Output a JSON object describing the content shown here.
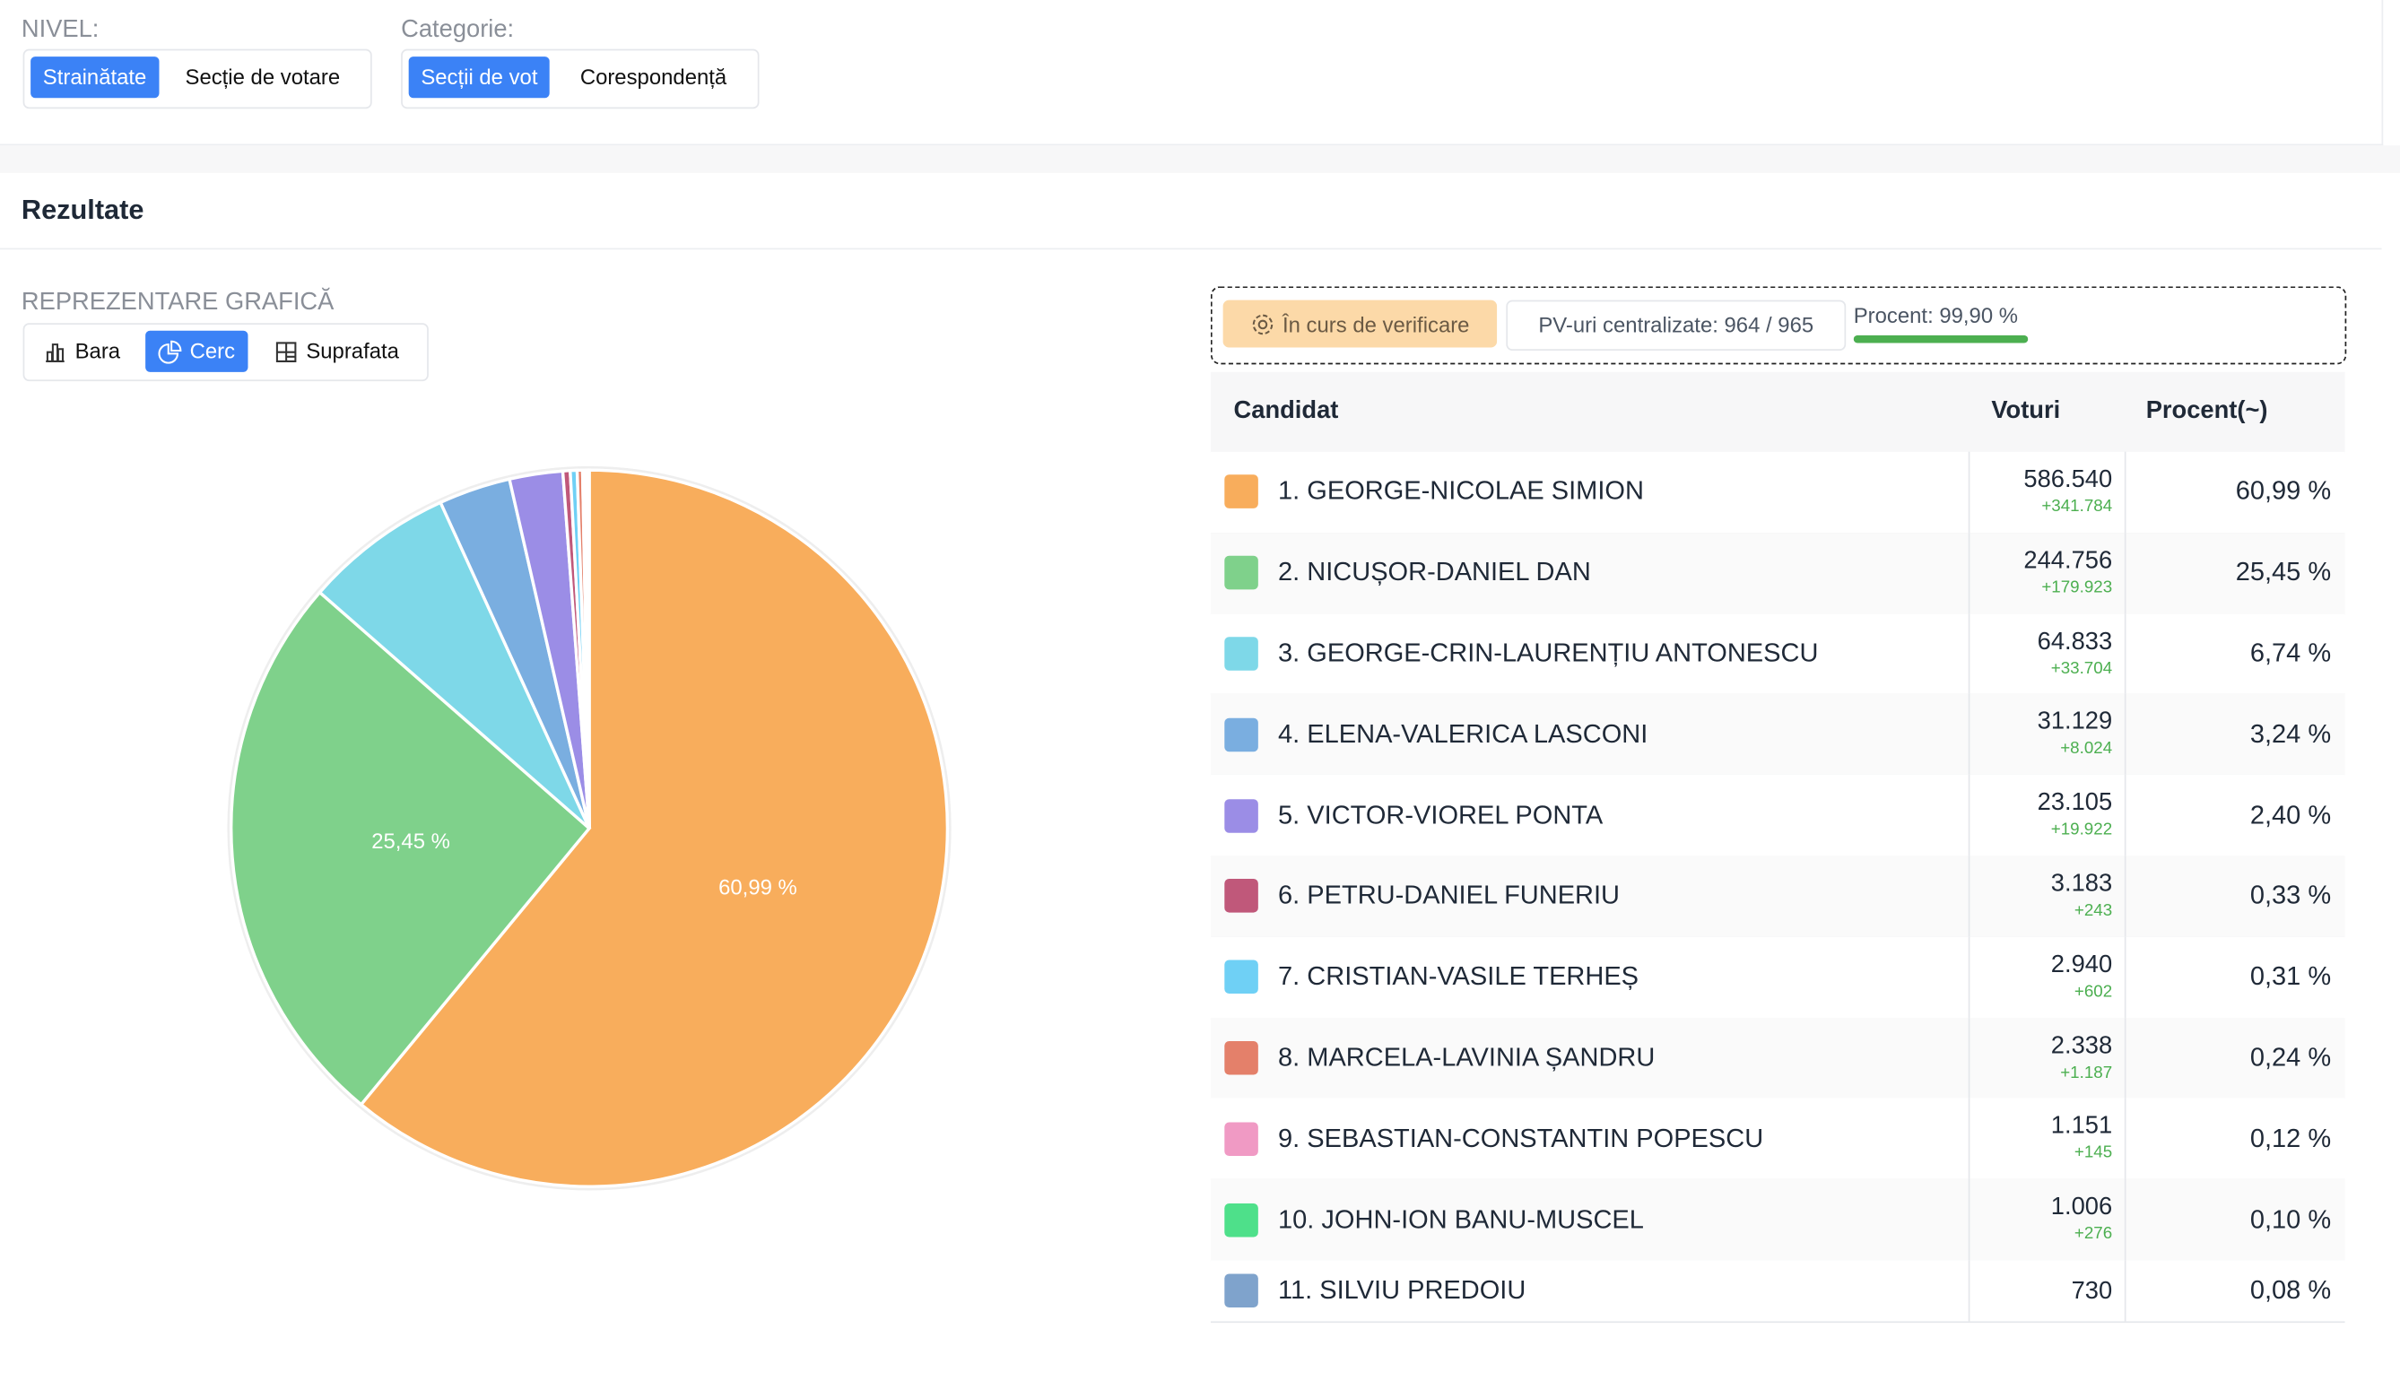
{
  "filters": {
    "level": {
      "label": "NIVEL:",
      "options": [
        "Strainătate",
        "Secție de votare"
      ]
    },
    "category": {
      "label": "Categorie:",
      "options": [
        "Secții de vot",
        "Corespondență"
      ]
    }
  },
  "section": {
    "title": "Rezultate",
    "chart_label": "REPREZENTARE GRAFICĂ",
    "chart_options": [
      "Bara",
      "Cerc",
      "Suprafata"
    ]
  },
  "status": {
    "badge": "În curs de verificare",
    "counted": "PV-uri centralizate: 964 / 965",
    "progress_label": "Procent: 99,90 %",
    "progress": 99.9
  },
  "chart_data": {
    "type": "pie",
    "values": [
      60.99,
      25.45,
      6.74,
      3.24,
      2.4,
      0.33,
      0.31,
      0.24,
      0.12,
      0.1,
      0.08
    ],
    "value_labels": [
      "60,99 %",
      "25,45 %",
      null,
      null,
      null,
      null,
      null,
      null,
      null,
      null,
      null
    ],
    "colors": [
      "#f8ad5c",
      "#7fd18b",
      "#7ed8e8",
      "#7aaee0",
      "#9b8de6",
      "#c0587a",
      "#6fd0f5",
      "#e4806a",
      "#f09ac4",
      "#4ee08a",
      "#7fa3cc"
    ]
  },
  "table": {
    "header": [
      "Candidat",
      "Voturi",
      "Procent(~)"
    ],
    "rows": [
      {
        "name": "1. GEORGE-NICOLAE SIMION",
        "votes": "586.540",
        "delta": "+341.784",
        "percent": "60,99 %"
      },
      {
        "name": "2. NICUȘOR-DANIEL DAN",
        "votes": "244.756",
        "delta": "+179.923",
        "percent": "25,45 %"
      },
      {
        "name": "3. GEORGE-CRIN-LAURENȚIU ANTONESCU",
        "votes": "64.833",
        "delta": "+33.704",
        "percent": "6,74 %"
      },
      {
        "name": "4. ELENA-VALERICA LASCONI",
        "votes": "31.129",
        "delta": "+8.024",
        "percent": "3,24 %"
      },
      {
        "name": "5. VICTOR-VIOREL PONTA",
        "votes": "23.105",
        "delta": "+19.922",
        "percent": "2,40 %"
      },
      {
        "name": "6. PETRU-DANIEL FUNERIU",
        "votes": "3.183",
        "delta": "+243",
        "percent": "0,33 %"
      },
      {
        "name": "7. CRISTIAN-VASILE TERHEȘ",
        "votes": "2.940",
        "delta": "+602",
        "percent": "0,31 %"
      },
      {
        "name": "8. MARCELA-LAVINIA ȘANDRU",
        "votes": "2.338",
        "delta": "+1.187",
        "percent": "0,24 %"
      },
      {
        "name": "9. SEBASTIAN-CONSTANTIN POPESCU",
        "votes": "1.151",
        "delta": "+145",
        "percent": "0,12 %"
      },
      {
        "name": "10. JOHN-ION BANU-MUSCEL",
        "votes": "1.006",
        "delta": "+276",
        "percent": "0,10 %"
      },
      {
        "name": "11. SILVIU PREDOIU",
        "votes": "730",
        "percent": "0,08 %"
      }
    ]
  }
}
